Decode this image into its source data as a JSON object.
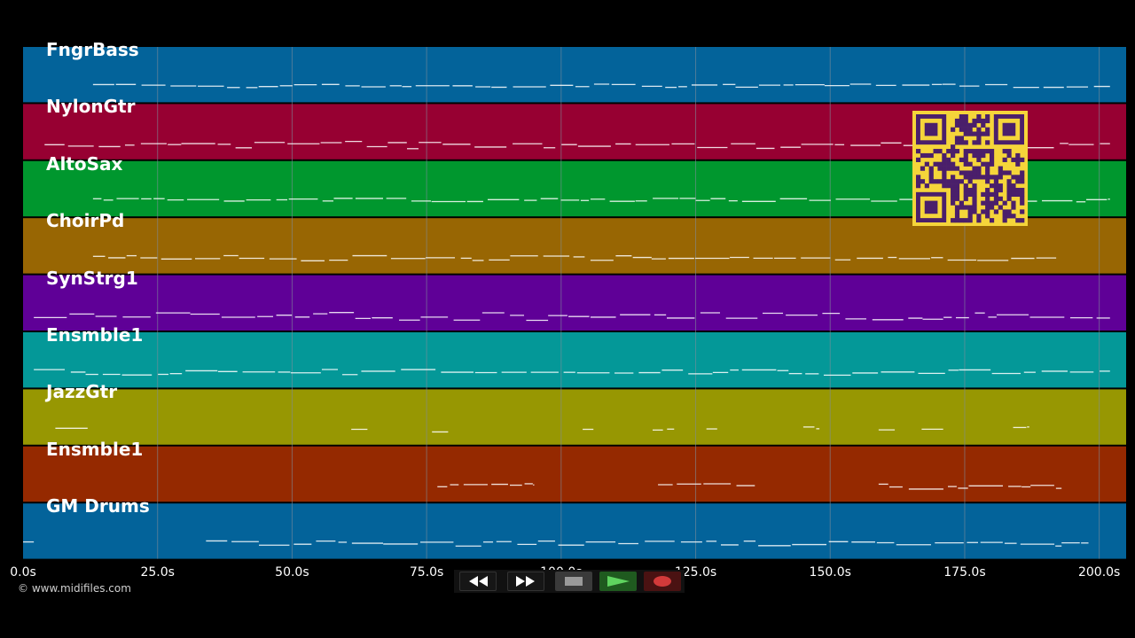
{
  "colors": {
    "background": "#000000",
    "grid_line": "#7f8c99",
    "note": "#ffffff",
    "qr_fg": "#4a1f6b",
    "qr_bg": "#f5d53a"
  },
  "tracks": [
    {
      "label": "FngrBass",
      "color": "#03639a"
    },
    {
      "label": "NylonGtr",
      "color": "#970032"
    },
    {
      "label": "AltoSax",
      "color": "#00972e"
    },
    {
      "label": "ChoirPd",
      "color": "#986603"
    },
    {
      "label": "SynStrg1",
      "color": "#5f0097"
    },
    {
      "label": "Ensmble1",
      "color": "#049898"
    },
    {
      "label": "JazzGtr",
      "color": "#979702"
    },
    {
      "label": "Ensmble1",
      "color": "#952900"
    },
    {
      "label": "GM Drums",
      "color": "#03639a"
    }
  ],
  "timeline": {
    "ticks": [
      "0.0s",
      "25.0s",
      "50.0s",
      "75.0s",
      "100.0s",
      "125.0s",
      "150.0s",
      "175.0s",
      "200.0s"
    ],
    "tick_values": [
      0,
      25,
      50,
      75,
      100,
      125,
      150,
      175,
      200
    ],
    "range": [
      0,
      205
    ]
  },
  "copyright": "© www.midifiles.com",
  "transport": {
    "rewind_icon": "rewind-icon",
    "forward_icon": "fast-forward-icon",
    "stop_icon": "stop-icon",
    "play_icon": "play-icon",
    "record_icon": "record-icon"
  }
}
